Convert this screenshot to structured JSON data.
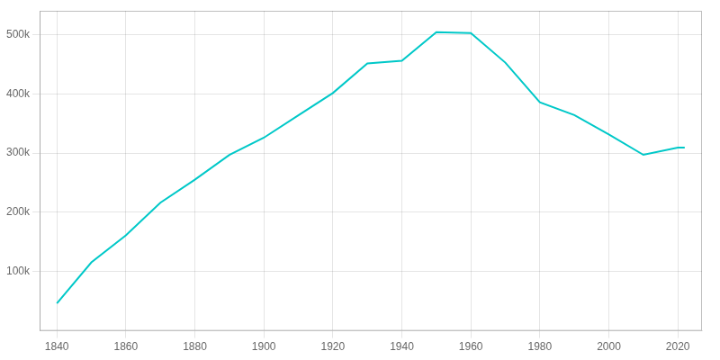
{
  "chart_data": {
    "type": "line",
    "x": [
      1840,
      1850,
      1860,
      1870,
      1880,
      1890,
      1900,
      1910,
      1920,
      1930,
      1940,
      1950,
      1960,
      1970,
      1980,
      1990,
      2000,
      2010,
      2020,
      2022
    ],
    "values": [
      46382,
      115435,
      161044,
      216239,
      255139,
      296908,
      325902,
      363591,
      401247,
      451160,
      455610,
      503998,
      502550,
      452524,
      385457,
      364040,
      331285,
      296943,
      309317,
      309317
    ],
    "color": "#00c8c8",
    "xlim": [
      1835,
      2027
    ],
    "xticks": [
      1840,
      1860,
      1880,
      1900,
      1920,
      1940,
      1960,
      1980,
      2000,
      2020
    ],
    "ylim": [
      0,
      540000
    ],
    "yticks": [
      {
        "value": 100000,
        "label": "100k"
      },
      {
        "value": 200000,
        "label": "200k"
      },
      {
        "value": 300000,
        "label": "300k"
      },
      {
        "value": 400000,
        "label": "400k"
      },
      {
        "value": 500000,
        "label": "500k"
      }
    ],
    "grid": true
  }
}
